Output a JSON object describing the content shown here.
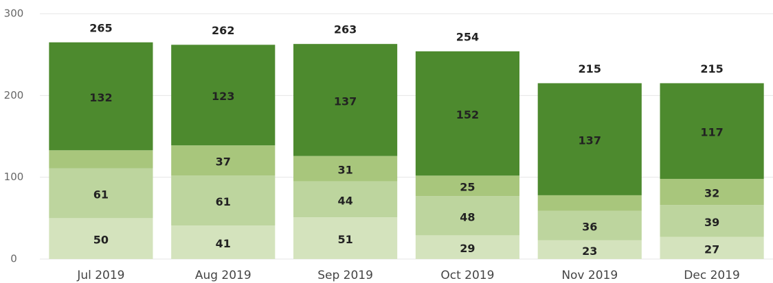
{
  "chart_data": {
    "type": "stacked_bar",
    "categories": [
      "Jul 2019",
      "Aug 2019",
      "Sep 2019",
      "Oct 2019",
      "Nov 2019",
      "Dec 2019"
    ],
    "series": [
      {
        "color": "#d4e3bd",
        "values": [
          50,
          41,
          51,
          29,
          23,
          27
        ]
      },
      {
        "color": "#bdd59e",
        "values": [
          61,
          61,
          44,
          48,
          36,
          39
        ]
      },
      {
        "color": "#a8c67c",
        "values": [
          22,
          37,
          31,
          25,
          19,
          32
        ],
        "value_labels": [
          null,
          "37",
          "31",
          "25",
          null,
          "32"
        ]
      },
      {
        "color": "#4d8a2e",
        "values": [
          132,
          123,
          137,
          152,
          137,
          117
        ]
      }
    ],
    "totals": [
      265,
      262,
      263,
      254,
      215,
      215
    ],
    "ylim": [
      0,
      300
    ],
    "yticks": [
      0,
      100,
      200,
      300
    ],
    "grid": true
  }
}
